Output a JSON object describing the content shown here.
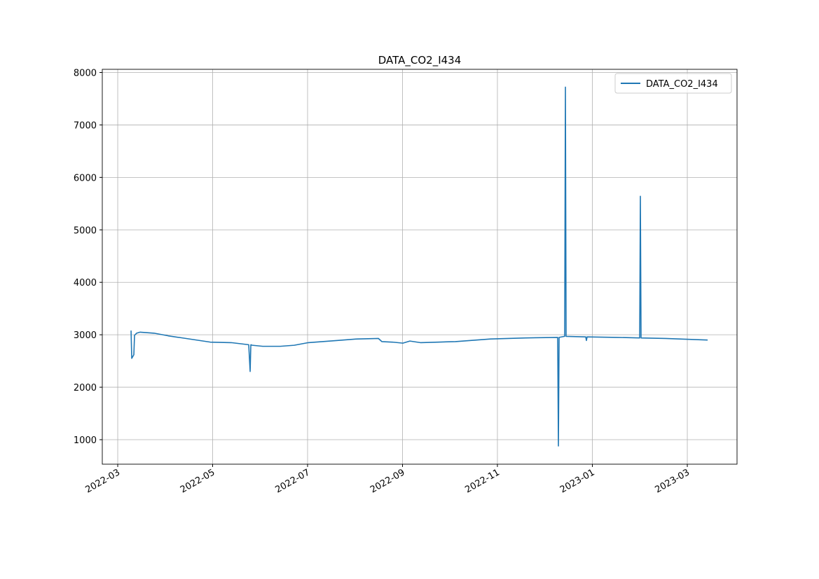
{
  "chart_data": {
    "type": "line",
    "title": "DATA_CO2_I434",
    "x": [
      2022.1901,
      2022.1913,
      2022.195,
      2022.1962,
      2022.1999,
      2022.2061,
      2022.2307,
      2022.2553,
      2022.2799,
      2022.3045,
      2022.3291,
      2022.366,
      2022.3967,
      2022.3992,
      2022.4004,
      2022.4029,
      2022.4213,
      2022.4521,
      2022.4767,
      2022.5013,
      2022.5505,
      2022.5874,
      2022.6243,
      2022.6304,
      2022.6489,
      2022.6673,
      2022.6796,
      2022.6981,
      2022.7288,
      2022.7596,
      2022.8211,
      2022.8826,
      2022.9391,
      2022.9404,
      2022.9416,
      2022.9514,
      2022.9527,
      2022.9539,
      2022.9883,
      2022.9896,
      2022.9908,
      2023.0425,
      2023.0831,
      2023.0843,
      2023.0855,
      2023.1286,
      2023.2024
    ],
    "series": [
      {
        "name": "DATA_CO2_I434",
        "color": "#1f77b4",
        "values": [
          3080,
          2550,
          2620,
          2990,
          3030,
          3050,
          3030,
          2980,
          2940,
          2900,
          2860,
          2850,
          2810,
          2300,
          2810,
          2800,
          2780,
          2780,
          2800,
          2850,
          2890,
          2920,
          2930,
          2870,
          2860,
          2840,
          2880,
          2850,
          2860,
          2870,
          2920,
          2940,
          2950,
          880,
          2950,
          2970,
          7720,
          2970,
          2960,
          2890,
          2960,
          2950,
          2940,
          5640,
          2940,
          2930,
          2900
        ]
      }
    ],
    "xlim": [
      2022.1396,
      2023.254
    ],
    "xticks": [
      {
        "value": 2022.1667,
        "label": "2022-03"
      },
      {
        "value": 2022.3333,
        "label": "2022-05"
      },
      {
        "value": 2022.5,
        "label": "2022-07"
      },
      {
        "value": 2022.6667,
        "label": "2022-09"
      },
      {
        "value": 2022.8333,
        "label": "2022-11"
      },
      {
        "value": 2023.0,
        "label": "2023-01"
      },
      {
        "value": 2023.1667,
        "label": "2023-03"
      }
    ],
    "ylim": [
      533,
      8060
    ],
    "yticks": [
      1000,
      2000,
      3000,
      4000,
      5000,
      6000,
      7000,
      8000
    ],
    "grid": true,
    "legend": "upper right"
  }
}
